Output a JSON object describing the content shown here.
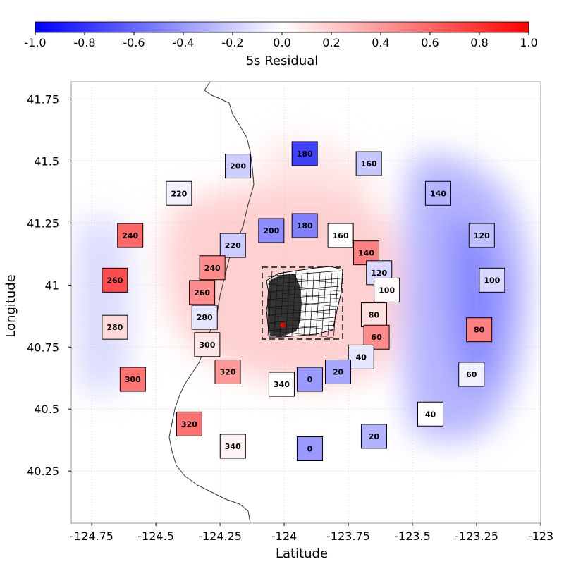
{
  "colorbar": {
    "label": "5s Residual",
    "range": [
      -1.0,
      1.0
    ],
    "ticks": [
      "-1.0",
      "-0.8",
      "-0.6",
      "-0.4",
      "-0.2",
      "0.0",
      "0.2",
      "0.4",
      "0.6",
      "0.8",
      "1.0"
    ],
    "colormap": "bwr",
    "low_color": "#0000ff",
    "mid_color": "#ffffff",
    "high_color": "#ff0000"
  },
  "chart_data": {
    "type": "heatmap",
    "xlabel": "Latitude",
    "ylabel": "Longitude",
    "xlim": [
      -124.83,
      -123.0
    ],
    "ylim": [
      40.04,
      41.82
    ],
    "xticks": [
      "-124.75",
      "-124.5",
      "-124.25",
      "-124",
      "-123.75",
      "-123.5",
      "-123.25",
      "-123"
    ],
    "yticks": [
      "40.25",
      "40.5",
      "40.75",
      "41",
      "41.25",
      "41.5",
      "41.75"
    ],
    "grid": "dotted",
    "hypocenter_color": "#ff0000",
    "stations": [
      {
        "label": "180",
        "lon": -123.92,
        "lat": 41.53,
        "residual": -0.75
      },
      {
        "label": "160",
        "lon": -123.67,
        "lat": 41.49,
        "residual": -0.22
      },
      {
        "label": "200",
        "lon": -124.18,
        "lat": 41.48,
        "residual": -0.2
      },
      {
        "label": "220",
        "lon": -124.41,
        "lat": 41.37,
        "residual": -0.05
      },
      {
        "label": "140",
        "lon": -123.4,
        "lat": 41.37,
        "residual": -0.3
      },
      {
        "label": "200",
        "lon": -124.05,
        "lat": 41.22,
        "residual": -0.45
      },
      {
        "label": "180",
        "lon": -123.92,
        "lat": 41.24,
        "residual": -0.5
      },
      {
        "label": "160",
        "lon": -123.78,
        "lat": 41.2,
        "residual": 0.0
      },
      {
        "label": "240",
        "lon": -124.6,
        "lat": 41.2,
        "residual": 0.6
      },
      {
        "label": "120",
        "lon": -123.23,
        "lat": 41.2,
        "residual": -0.25
      },
      {
        "label": "220",
        "lon": -124.2,
        "lat": 41.16,
        "residual": -0.2
      },
      {
        "label": "140",
        "lon": -123.68,
        "lat": 41.13,
        "residual": 0.5
      },
      {
        "label": "240",
        "lon": -124.28,
        "lat": 41.07,
        "residual": 0.45
      },
      {
        "label": "120",
        "lon": -123.63,
        "lat": 41.05,
        "residual": -0.15
      },
      {
        "label": "260",
        "lon": -124.66,
        "lat": 41.02,
        "residual": 0.7
      },
      {
        "label": "100",
        "lon": -123.19,
        "lat": 41.02,
        "residual": -0.15
      },
      {
        "label": "100",
        "lon": -123.6,
        "lat": 40.98,
        "residual": 0.02
      },
      {
        "label": "260",
        "lon": -124.32,
        "lat": 40.97,
        "residual": 0.45
      },
      {
        "label": "280",
        "lon": -124.31,
        "lat": 40.87,
        "residual": -0.1
      },
      {
        "label": "80",
        "lon": -123.65,
        "lat": 40.88,
        "residual": 0.12
      },
      {
        "label": "280",
        "lon": -124.66,
        "lat": 40.83,
        "residual": 0.15
      },
      {
        "label": "80",
        "lon": -123.24,
        "lat": 40.82,
        "residual": 0.5
      },
      {
        "label": "60",
        "lon": -123.64,
        "lat": 40.79,
        "residual": 0.45
      },
      {
        "label": "300",
        "lon": -124.3,
        "lat": 40.76,
        "residual": 0.1
      },
      {
        "label": "40",
        "lon": -123.7,
        "lat": 40.71,
        "residual": -0.1
      },
      {
        "label": "320",
        "lon": -124.22,
        "lat": 40.65,
        "residual": 0.4
      },
      {
        "label": "20",
        "lon": -123.79,
        "lat": 40.65,
        "residual": -0.35
      },
      {
        "label": "60",
        "lon": -123.27,
        "lat": 40.64,
        "residual": -0.05
      },
      {
        "label": "300",
        "lon": -124.59,
        "lat": 40.62,
        "residual": 0.55
      },
      {
        "label": "340",
        "lon": -124.01,
        "lat": 40.6,
        "residual": 0.0
      },
      {
        "label": "0",
        "lon": -123.9,
        "lat": 40.62,
        "residual": -0.4
      },
      {
        "label": "40",
        "lon": -123.43,
        "lat": 40.48,
        "residual": 0.0
      },
      {
        "label": "320",
        "lon": -124.37,
        "lat": 40.44,
        "residual": 0.55
      },
      {
        "label": "20",
        "lon": -123.65,
        "lat": 40.39,
        "residual": -0.3
      },
      {
        "label": "340",
        "lon": -124.2,
        "lat": 40.35,
        "residual": 0.05
      },
      {
        "label": "0",
        "lon": -123.9,
        "lat": 40.34,
        "residual": -0.4
      }
    ]
  }
}
